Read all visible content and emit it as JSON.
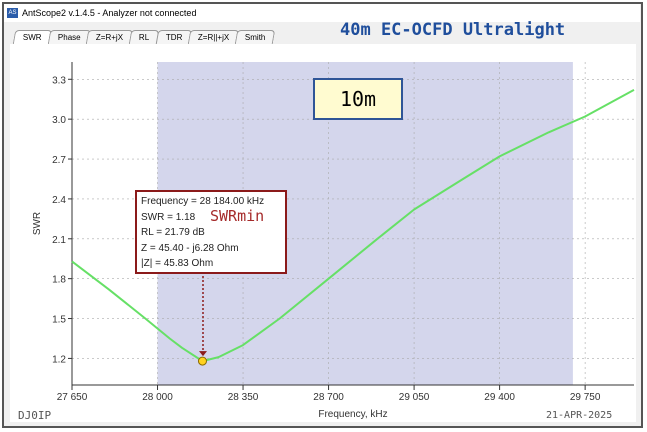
{
  "window": {
    "icon_text": "AS",
    "title": "AntScope2 v.1.4.5 - Analyzer not connected"
  },
  "tabs": [
    {
      "label": "SWR",
      "active": true
    },
    {
      "label": "Phase"
    },
    {
      "label": "Z=R+jX"
    },
    {
      "label": "RL"
    },
    {
      "label": "TDR"
    },
    {
      "label": "Z=R||+jX"
    },
    {
      "label": "Smith"
    }
  ],
  "heading": "40m EC-OCFD Ultralight",
  "band_label": "10m",
  "marker": {
    "lines": [
      "Frequency = 28 184.00 kHz",
      "SWR = 1.18",
      "RL = 21.79 dB",
      "Z = 45.40 - j6.28 Ohm",
      "|Z| = 45.83 Ohm"
    ],
    "tag": "SWRmin"
  },
  "callsign": "DJ0IP",
  "date": "21-APR-2025",
  "colors": {
    "curve": "#66e066",
    "band_shade": "#d4d6ec",
    "marker_border": "#8b1a1a",
    "heading": "#1f4e9c"
  },
  "chart_data": {
    "type": "line",
    "xlabel": "Frequency, kHz",
    "ylabel": "SWR",
    "xlim": [
      27650,
      29950
    ],
    "ylim": [
      1.0,
      3.43
    ],
    "xticks": [
      "27 650",
      "28 000",
      "28 350",
      "28 700",
      "29 050",
      "29 400",
      "29 750"
    ],
    "xtick_values": [
      27650,
      28000,
      28350,
      28700,
      29050,
      29400,
      29750
    ],
    "yticks": [
      "1.2",
      "1.5",
      "1.8",
      "2.1",
      "2.4",
      "2.7",
      "3.0",
      "3.3"
    ],
    "ytick_values": [
      1.2,
      1.5,
      1.8,
      2.1,
      2.4,
      2.7,
      3.0,
      3.3
    ],
    "band_range": [
      28000,
      29700
    ],
    "marker_point": {
      "x": 28184,
      "y": 1.18
    },
    "x": [
      27650,
      27800,
      27950,
      28050,
      28100,
      28184,
      28250,
      28350,
      28500,
      28700,
      28900,
      29050,
      29250,
      29400,
      29600,
      29750,
      29950
    ],
    "y": [
      1.93,
      1.72,
      1.5,
      1.35,
      1.28,
      1.18,
      1.21,
      1.3,
      1.5,
      1.8,
      2.1,
      2.32,
      2.55,
      2.72,
      2.9,
      3.02,
      3.22
    ],
    "grid": true
  }
}
